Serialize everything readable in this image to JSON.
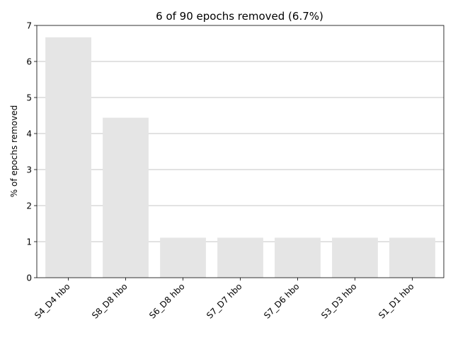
{
  "chart_data": {
    "type": "bar",
    "title": "6 of 90 epochs removed (6.7%)",
    "xlabel": "",
    "ylabel": "% of epochs removed",
    "categories": [
      "S4_D4 hbo",
      "S8_D8 hbo",
      "S6_D8 hbo",
      "S7_D7 hbo",
      "S7_D6 hbo",
      "S3_D3 hbo",
      "S1_D1 hbo"
    ],
    "values": [
      6.67,
      4.44,
      1.11,
      1.11,
      1.11,
      1.11,
      1.11
    ],
    "ylim": [
      0,
      7
    ],
    "yticks": [
      "0",
      "1",
      "2",
      "3",
      "4",
      "5",
      "6",
      "7"
    ],
    "grid": "horizontal",
    "legend": "none",
    "bar_color": "#e5e5e5",
    "grid_color": "#b0b0b0"
  }
}
